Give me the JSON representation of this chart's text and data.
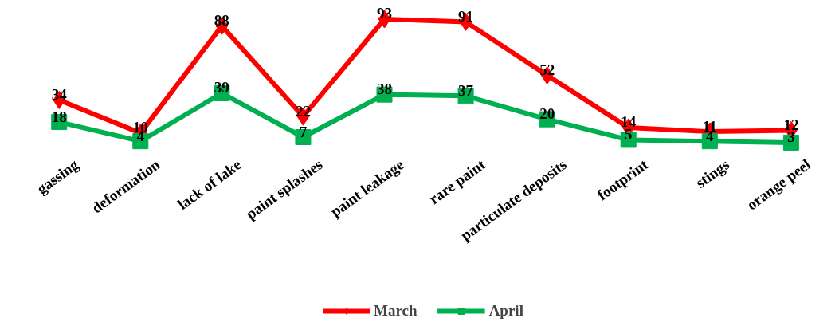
{
  "chart_data": {
    "type": "line",
    "categories": [
      "gassing",
      "deformation",
      "lack of lake",
      "paint splashes",
      "paint leakage",
      "rare paint",
      "particulate deposits",
      "footprint",
      "stings",
      "orange peel"
    ],
    "series": [
      {
        "name": "March",
        "color": "#ff0000",
        "marker": "diamond",
        "values": [
          34,
          10,
          88,
          22,
          93,
          91,
          52,
          14,
          11,
          12
        ]
      },
      {
        "name": "April",
        "color": "#00b050",
        "marker": "square",
        "values": [
          18,
          4,
          39,
          7,
          38,
          37,
          20,
          5,
          4,
          3
        ]
      }
    ],
    "data_labels": true,
    "legend": "bottom",
    "grid": false,
    "line_style": "solid"
  }
}
